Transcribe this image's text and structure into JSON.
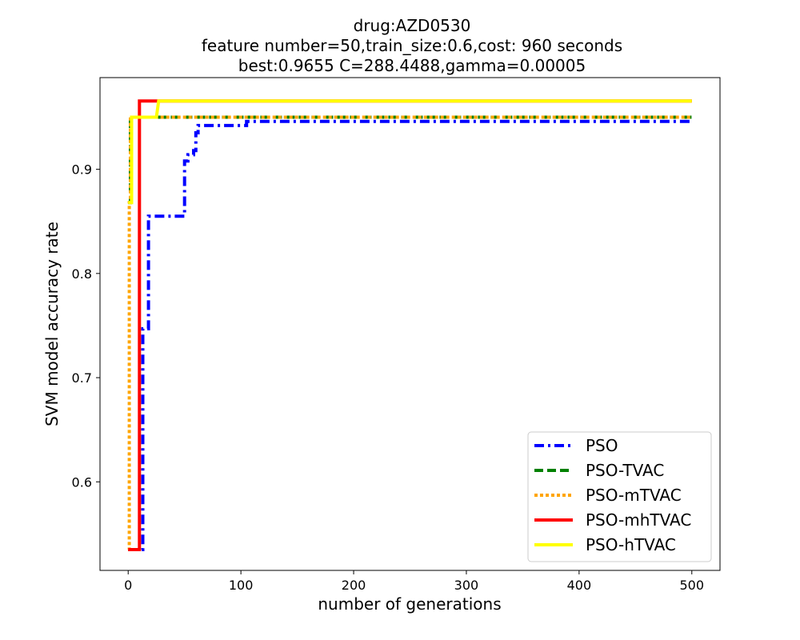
{
  "chart_data": {
    "type": "line",
    "title_lines": [
      "drug:AZD0530",
      "feature number=50,train_size:0.6,cost: 960 seconds",
      "best:0.9655  C=288.4488,gamma=0.00005"
    ],
    "xlabel": "number of generations",
    "ylabel": "SVM model accuracy rate",
    "xlim": [
      -25,
      525
    ],
    "ylim": [
      0.515,
      0.988
    ],
    "xticks": [
      0,
      100,
      200,
      300,
      400,
      500
    ],
    "yticks": [
      0.6,
      0.7,
      0.8,
      0.9
    ],
    "ytick_labels": [
      "0.6",
      "0.7",
      "0.8",
      "0.9"
    ],
    "grid": false,
    "legend_position": "lower-right",
    "series": [
      {
        "name": "PSO",
        "color": "#0000ff",
        "style": "dashdot",
        "points": [
          [
            0,
            0.535
          ],
          [
            13,
            0.535
          ],
          [
            13,
            0.747
          ],
          [
            18,
            0.747
          ],
          [
            18,
            0.855
          ],
          [
            50,
            0.855
          ],
          [
            50,
            0.908
          ],
          [
            53,
            0.908
          ],
          [
            53,
            0.914
          ],
          [
            58,
            0.914
          ],
          [
            58,
            0.918
          ],
          [
            60,
            0.918
          ],
          [
            60,
            0.935
          ],
          [
            62,
            0.935
          ],
          [
            62,
            0.942
          ],
          [
            105,
            0.942
          ],
          [
            105,
            0.946
          ],
          [
            500,
            0.946
          ]
        ]
      },
      {
        "name": "PSO-TVAC",
        "color": "#008000",
        "style": "dashed",
        "points": [
          [
            0,
            0.868
          ],
          [
            2,
            0.868
          ],
          [
            2,
            0.95
          ],
          [
            500,
            0.95
          ]
        ]
      },
      {
        "name": "PSO-mTVAC",
        "color": "#ffa500",
        "style": "dotted",
        "points": [
          [
            0,
            0.535
          ],
          [
            1,
            0.535
          ],
          [
            1,
            0.868
          ],
          [
            2,
            0.868
          ],
          [
            2,
            0.95
          ],
          [
            500,
            0.95
          ]
        ]
      },
      {
        "name": "PSO-mhTVAC",
        "color": "#ff0000",
        "style": "solid",
        "points": [
          [
            0,
            0.535
          ],
          [
            10,
            0.535
          ],
          [
            10,
            0.9655
          ],
          [
            500,
            0.9655
          ]
        ]
      },
      {
        "name": "PSO-hTVAC",
        "color": "#ffff00",
        "style": "solid",
        "points": [
          [
            0,
            0.868
          ],
          [
            3,
            0.868
          ],
          [
            3,
            0.95
          ],
          [
            25,
            0.95
          ],
          [
            27,
            0.9655
          ],
          [
            500,
            0.9655
          ]
        ]
      }
    ]
  }
}
